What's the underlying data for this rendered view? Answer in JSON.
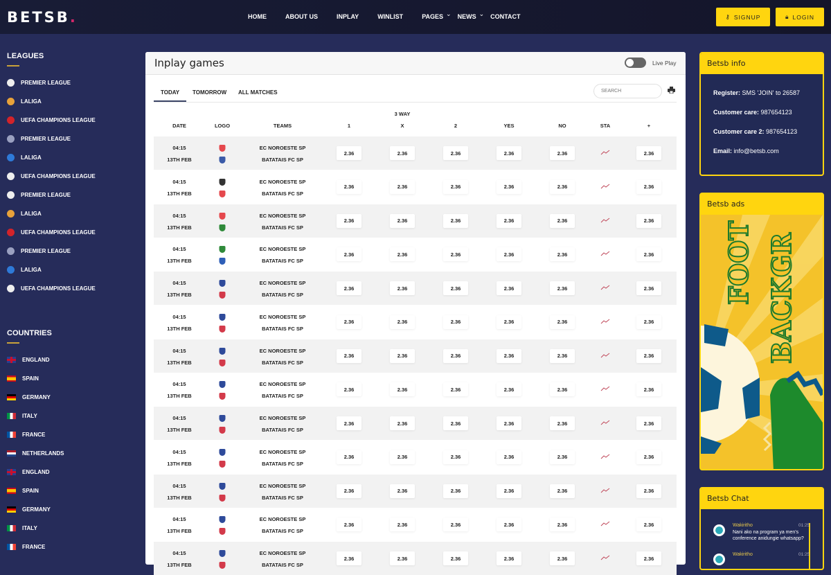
{
  "header": {
    "logo": "BETSB",
    "logo_dot": ".",
    "nav": [
      "HOME",
      "ABOUT US",
      "INPLAY",
      "WINLIST",
      "PAGES",
      "NEWS",
      "CONTACT"
    ],
    "signup": "SIGNUP",
    "login": "LOGIN"
  },
  "sidebar": {
    "leagues_title": "LEAGUES",
    "leagues": [
      {
        "label": "PREMIER LEAGUE",
        "color": "#eee"
      },
      {
        "label": "LALIGA",
        "color": "#e8a23a"
      },
      {
        "label": "UEFA CHAMPIONS LEAGUE",
        "color": "#d3232a"
      },
      {
        "label": "PREMIER LEAGUE",
        "color": "#9aa0c0"
      },
      {
        "label": "LALIGA",
        "color": "#2e7ad8"
      },
      {
        "label": "UEFA CHAMPIONS LEAGUE",
        "color": "#eee"
      },
      {
        "label": "PREMIER LEAGUE",
        "color": "#eee"
      },
      {
        "label": "LALIGA",
        "color": "#e8a23a"
      },
      {
        "label": "UEFA CHAMPIONS LEAGUE",
        "color": "#d3232a"
      },
      {
        "label": "PREMIER LEAGUE",
        "color": "#9aa0c0"
      },
      {
        "label": "LALIGA",
        "color": "#2e7ad8"
      },
      {
        "label": "UEFA CHAMPIONS LEAGUE",
        "color": "#eee"
      }
    ],
    "countries_title": "COUNTRIES",
    "countries": [
      {
        "label": "ENGLAND",
        "flag": "uk"
      },
      {
        "label": "SPAIN",
        "flag": "es"
      },
      {
        "label": "GERMANY",
        "flag": "de"
      },
      {
        "label": "ITALY",
        "flag": "it"
      },
      {
        "label": "FRANCE",
        "flag": "fr"
      },
      {
        "label": "NETHERLANDS",
        "flag": "nl"
      },
      {
        "label": "ENGLAND",
        "flag": "uk"
      },
      {
        "label": "SPAIN",
        "flag": "es"
      },
      {
        "label": "GERMANY",
        "flag": "de"
      },
      {
        "label": "ITALY",
        "flag": "it"
      },
      {
        "label": "FRANCE",
        "flag": "fr"
      }
    ]
  },
  "main": {
    "title": "Inplay games",
    "live_label": "Live Play",
    "live_on": false,
    "tabs": [
      "TODAY",
      "TOMORROW",
      "ALL MATCHES"
    ],
    "active_tab": "TODAY",
    "search_placeholder": "SEARCH",
    "group_header": "3 WAY",
    "columns": [
      "DATE",
      "LOGO",
      "TEAMS",
      "1",
      "X",
      "2",
      "YES",
      "NO",
      "STA",
      "+"
    ],
    "rows": [
      {
        "time": "04:15",
        "date": "13TH FEB",
        "home": "EC NOROESTE SP",
        "away": "BATATAIS FC SP",
        "odds": [
          "2.36",
          "2.36",
          "2.36",
          "2.36",
          "2.36"
        ],
        "plus": "2.36",
        "logos": [
          "#e5484d",
          "#3b5ba8"
        ]
      },
      {
        "time": "04:15",
        "date": "13TH FEB",
        "home": "EC NOROESTE SP",
        "away": "BATATAIS FC SP",
        "odds": [
          "2.36",
          "2.36",
          "2.36",
          "2.36",
          "2.36"
        ],
        "plus": "2.36",
        "logos": [
          "#333",
          "#e5484d"
        ]
      },
      {
        "time": "04:15",
        "date": "13TH FEB",
        "home": "EC NOROESTE SP",
        "away": "BATATAIS FC SP",
        "odds": [
          "2.36",
          "2.36",
          "2.36",
          "2.36",
          "2.36"
        ],
        "plus": "2.36",
        "logos": [
          "#e5484d",
          "#2f8a3a"
        ]
      },
      {
        "time": "04:15",
        "date": "13TH FEB",
        "home": "EC NOROESTE SP",
        "away": "BATATAIS FC SP",
        "odds": [
          "2.36",
          "2.36",
          "2.36",
          "2.36",
          "2.36"
        ],
        "plus": "2.36",
        "logos": [
          "#2f8a3a",
          "#2e5fb8"
        ]
      },
      {
        "time": "04:15",
        "date": "13TH FEB",
        "home": "EC NOROESTE SP",
        "away": "BATATAIS FC SP",
        "odds": [
          "2.36",
          "2.36",
          "2.36",
          "2.36",
          "2.36"
        ],
        "plus": "2.36",
        "logos": [
          "#2e4a9a",
          "#d33a4a"
        ]
      },
      {
        "time": "04:15",
        "date": "13TH FEB",
        "home": "EC NOROESTE SP",
        "away": "BATATAIS FC SP",
        "odds": [
          "2.36",
          "2.36",
          "2.36",
          "2.36",
          "2.36"
        ],
        "plus": "2.36",
        "logos": [
          "#2e4a9a",
          "#d33a4a"
        ]
      },
      {
        "time": "04:15",
        "date": "13TH FEB",
        "home": "EC NOROESTE SP",
        "away": "BATATAIS FC SP",
        "odds": [
          "2.36",
          "2.36",
          "2.36",
          "2.36",
          "2.36"
        ],
        "plus": "2.36",
        "logos": [
          "#2e4a9a",
          "#d33a4a"
        ]
      },
      {
        "time": "04:15",
        "date": "13TH FEB",
        "home": "EC NOROESTE SP",
        "away": "BATATAIS FC SP",
        "odds": [
          "2.36",
          "2.36",
          "2.36",
          "2.36",
          "2.36"
        ],
        "plus": "2.36",
        "logos": [
          "#2e4a9a",
          "#d33a4a"
        ]
      },
      {
        "time": "04:15",
        "date": "13TH FEB",
        "home": "EC NOROESTE SP",
        "away": "BATATAIS FC SP",
        "odds": [
          "2.36",
          "2.36",
          "2.36",
          "2.36",
          "2.36"
        ],
        "plus": "2.36",
        "logos": [
          "#2e4a9a",
          "#d33a4a"
        ]
      },
      {
        "time": "04:15",
        "date": "13TH FEB",
        "home": "EC NOROESTE SP",
        "away": "BATATAIS FC SP",
        "odds": [
          "2.36",
          "2.36",
          "2.36",
          "2.36",
          "2.36"
        ],
        "plus": "2.36",
        "logos": [
          "#2e4a9a",
          "#d33a4a"
        ]
      },
      {
        "time": "04:15",
        "date": "13TH FEB",
        "home": "EC NOROESTE SP",
        "away": "BATATAIS FC SP",
        "odds": [
          "2.36",
          "2.36",
          "2.36",
          "2.36",
          "2.36"
        ],
        "plus": "2.36",
        "logos": [
          "#2e4a9a",
          "#d33a4a"
        ]
      },
      {
        "time": "04:15",
        "date": "13TH FEB",
        "home": "EC NOROESTE SP",
        "away": "BATATAIS FC SP",
        "odds": [
          "2.36",
          "2.36",
          "2.36",
          "2.36",
          "2.36"
        ],
        "plus": "2.36",
        "logos": [
          "#2e4a9a",
          "#d33a4a"
        ]
      },
      {
        "time": "04:15",
        "date": "13TH FEB",
        "home": "EC NOROESTE SP",
        "away": "BATATAIS FC SP",
        "odds": [
          "2.36",
          "2.36",
          "2.36",
          "2.36",
          "2.36"
        ],
        "plus": "2.36",
        "logos": [
          "#2e4a9a",
          "#d33a4a"
        ]
      }
    ]
  },
  "info": {
    "title": "Betsb info",
    "items": [
      {
        "k": "Register:",
        "v": "SMS 'JOIN' to 26587"
      },
      {
        "k": "Customer care:",
        "v": "987654123"
      },
      {
        "k": "Customer care 2:",
        "v": "987654123"
      },
      {
        "k": "Email:",
        "v": "info@betsb.com"
      }
    ]
  },
  "ads": {
    "title": "Betsb ads",
    "image_text": [
      "FOOT",
      "BACKGR"
    ]
  },
  "chat": {
    "title": "Betsb Chat",
    "messages": [
      {
        "user": "Wakiritho",
        "time": "01:25",
        "text": "Nani ako na program ya men's conference anidungie whatsapp?"
      },
      {
        "user": "Wakiritho",
        "time": "01:25",
        "text": ""
      }
    ]
  },
  "colors": {
    "accent": "#ffd50f",
    "header_bg": "#161a33",
    "body_bg": "#262c5a",
    "sta_icon": "#c0485a"
  }
}
